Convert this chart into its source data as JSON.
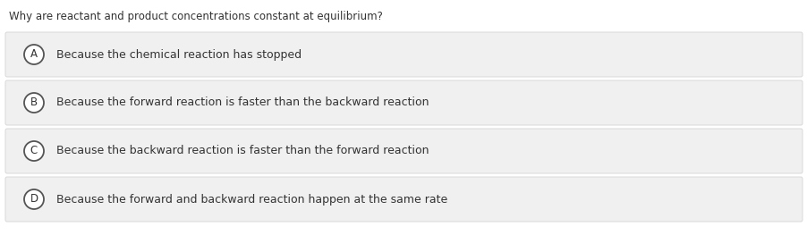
{
  "question": "Why are reactant and product concentrations constant at equilibrium?",
  "options": [
    {
      "label": "A",
      "text": "Because the chemical reaction has stopped"
    },
    {
      "label": "B",
      "text": "Because the forward reaction is faster than the backward reaction"
    },
    {
      "label": "C",
      "text": "Because the backward reaction is faster than the forward reaction"
    },
    {
      "label": "D",
      "text": "Because the forward and backward reaction happen at the same rate"
    }
  ],
  "bg_color": "#ffffff",
  "box_color": "#f0f0f0",
  "box_edge_color": "#d8d8d8",
  "question_color": "#333333",
  "text_color": "#333333",
  "circle_edge_color": "#555555",
  "circle_face_color": "#ffffff",
  "question_fontsize": 8.5,
  "option_fontsize": 9.0,
  "label_fontsize": 8.5,
  "fig_width": 9.03,
  "fig_height": 2.63,
  "dpi": 100
}
